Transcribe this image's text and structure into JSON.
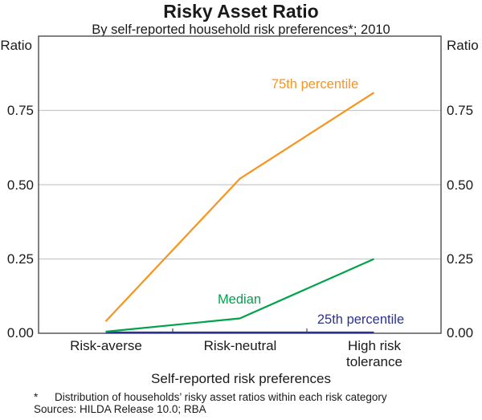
{
  "header": {
    "title": "Risky Asset Ratio",
    "subtitle": "By self-reported household risk preferences*; 2010"
  },
  "axes": {
    "left_unit": "Ratio",
    "right_unit": "Ratio",
    "y_tick_labels": [
      "0.00",
      "0.25",
      "0.50",
      "0.75"
    ],
    "x_axis_title": "Self-reported risk preferences"
  },
  "chart_data": {
    "type": "line",
    "title": "Risky Asset Ratio",
    "subtitle": "By self-reported household risk preferences*; 2010",
    "categories": [
      "Risk-averse",
      "Risk-neutral",
      "High risk tolerance"
    ],
    "series": [
      {
        "name": "75th percentile",
        "values": [
          0.04,
          0.52,
          0.81
        ],
        "color": "#F7941E"
      },
      {
        "name": "Median",
        "values": [
          0.0,
          0.05,
          0.25
        ],
        "color": "#00A24C"
      },
      {
        "name": "25th percentile",
        "values": [
          0.0,
          0.0,
          0.0
        ],
        "color": "#2D328F"
      }
    ],
    "xlabel": "Self-reported risk preferences",
    "ylabel": "Ratio",
    "ylim": [
      0,
      1.0
    ],
    "yticks": [
      0,
      0.25,
      0.5,
      0.75
    ],
    "grid": true,
    "legend": "inline-labels",
    "x_tick_marks": "between-categories"
  },
  "footer": {
    "footnote_marker": "*",
    "footnote_text": "Distribution of households’ risky asset ratios within each risk category",
    "sources": "Sources: HILDA Release 10.0; RBA"
  },
  "colors": {
    "frame": "#4D4D4F",
    "gridline": "#C7C9CB",
    "text": "#1A1A1A"
  }
}
